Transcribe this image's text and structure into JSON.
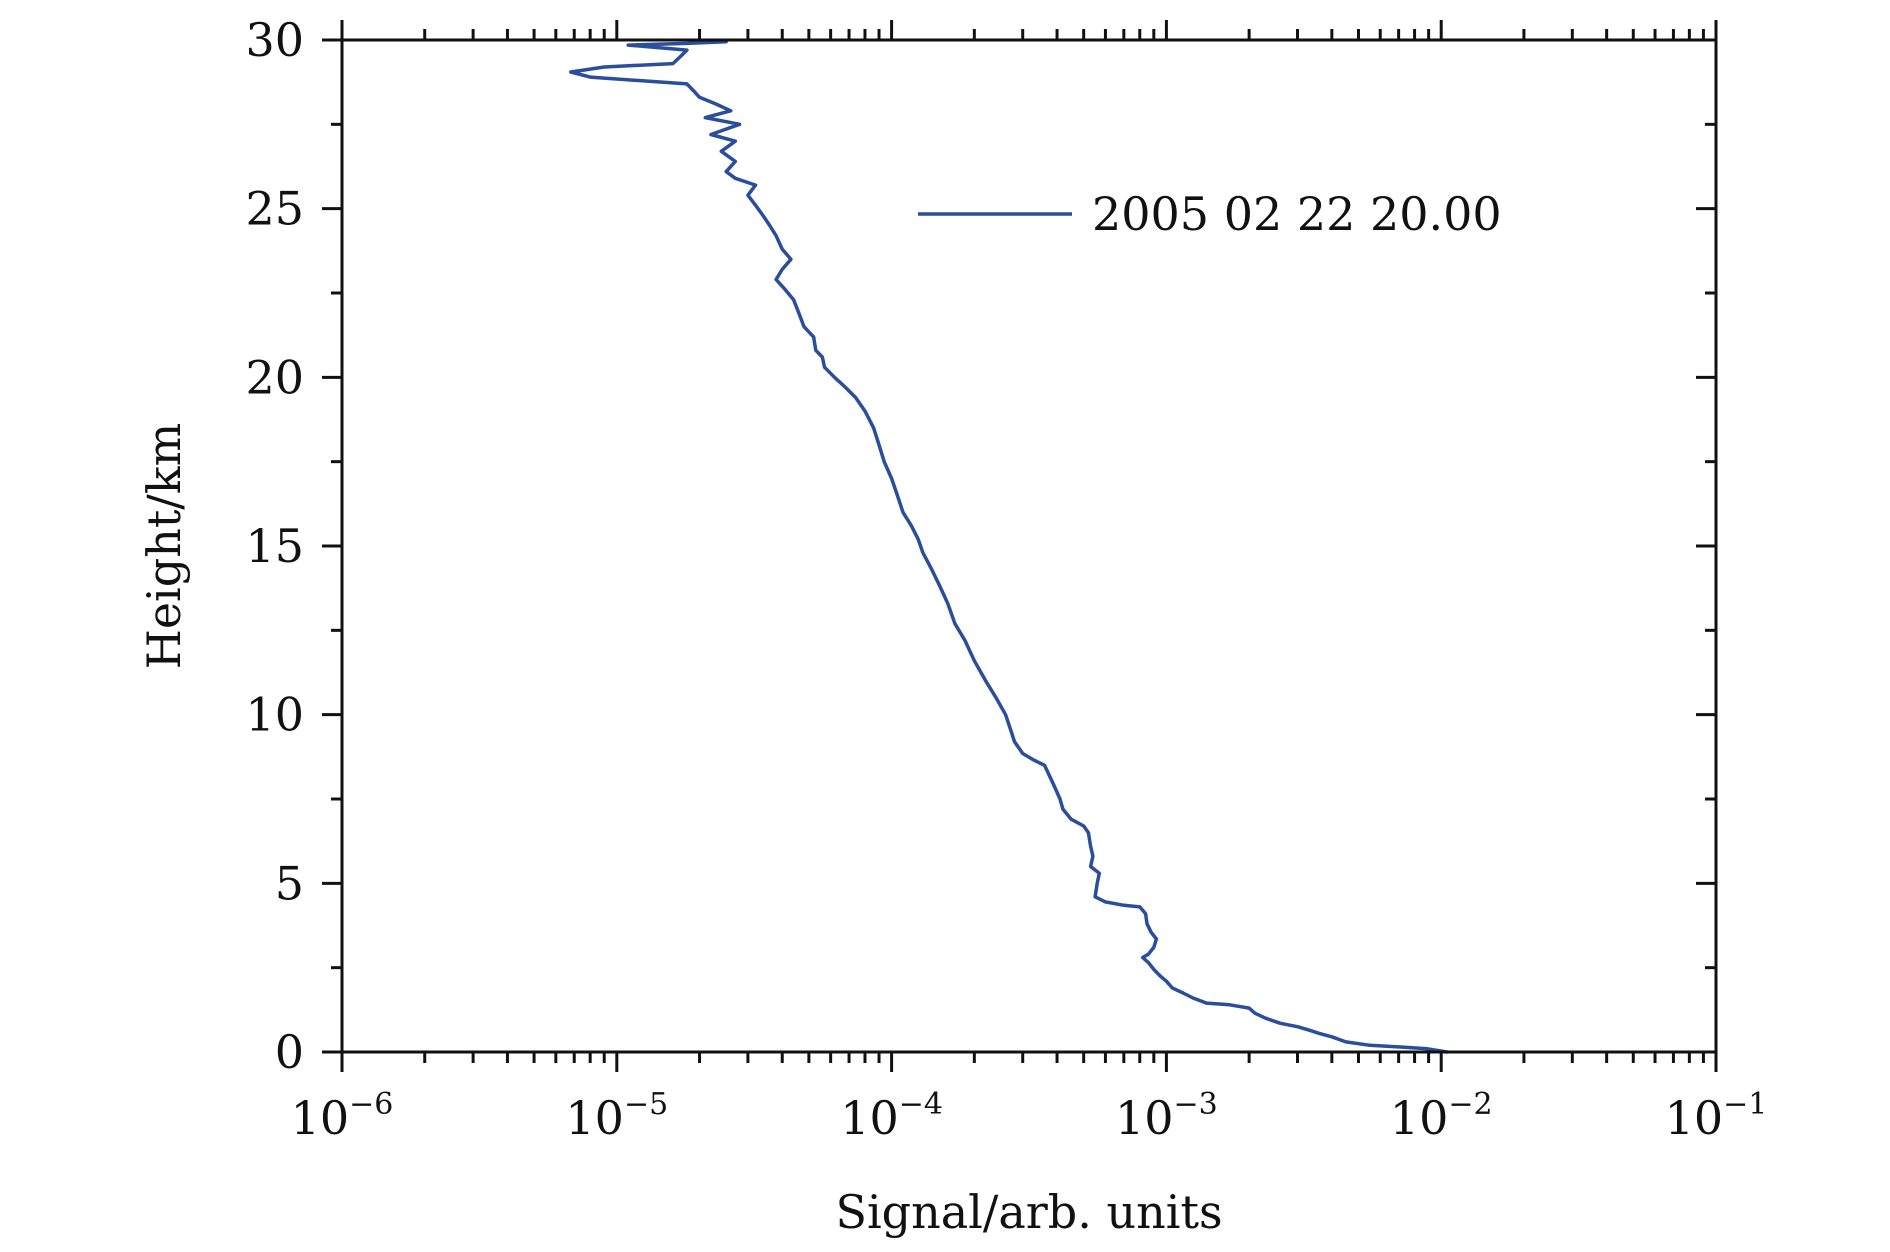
{
  "chart_data": {
    "type": "line",
    "title": "",
    "xlabel": "Signal/arb. units",
    "ylabel": "Height/km",
    "xscale": "log",
    "xlim": [
      1e-06,
      0.1
    ],
    "ylim": [
      0,
      30
    ],
    "grid": false,
    "legend_position": "top-right",
    "x_ticks": [
      {
        "base": "10",
        "exp": "−6",
        "value": 1e-06
      },
      {
        "base": "10",
        "exp": "−5",
        "value": 1e-05
      },
      {
        "base": "10",
        "exp": "−4",
        "value": 0.0001
      },
      {
        "base": "10",
        "exp": "−3",
        "value": 0.001
      },
      {
        "base": "10",
        "exp": "−2",
        "value": 0.01
      },
      {
        "base": "10",
        "exp": "−1",
        "value": 0.1
      }
    ],
    "y_ticks": [
      {
        "label": "0",
        "value": 0
      },
      {
        "label": "5",
        "value": 5
      },
      {
        "label": "10",
        "value": 10
      },
      {
        "label": "15",
        "value": 15
      },
      {
        "label": "20",
        "value": 20
      },
      {
        "label": "25",
        "value": 25
      },
      {
        "label": "30",
        "value": 30
      }
    ],
    "series": [
      {
        "name": "2005 02 22 20.00",
        "color": "#2a4d9c",
        "points": [
          [
            0.0105,
            0.0
          ],
          [
            0.0088,
            0.1
          ],
          [
            0.007,
            0.15
          ],
          [
            0.0055,
            0.2
          ],
          [
            0.0045,
            0.3
          ],
          [
            0.004,
            0.45
          ],
          [
            0.0036,
            0.55
          ],
          [
            0.0033,
            0.65
          ],
          [
            0.003,
            0.75
          ],
          [
            0.0026,
            0.85
          ],
          [
            0.0023,
            1.0
          ],
          [
            0.0021,
            1.15
          ],
          [
            0.002,
            1.3
          ],
          [
            0.0017,
            1.4
          ],
          [
            0.0014,
            1.45
          ],
          [
            0.00125,
            1.6
          ],
          [
            0.00115,
            1.75
          ],
          [
            0.00105,
            1.9
          ],
          [
            0.001,
            2.1
          ],
          [
            0.00095,
            2.25
          ],
          [
            0.0009,
            2.45
          ],
          [
            0.00086,
            2.65
          ],
          [
            0.00082,
            2.8
          ],
          [
            0.00086,
            2.9
          ],
          [
            0.0009,
            3.1
          ],
          [
            0.00092,
            3.35
          ],
          [
            0.00088,
            3.55
          ],
          [
            0.00085,
            3.8
          ],
          [
            0.00084,
            4.1
          ],
          [
            0.0008,
            4.3
          ],
          [
            0.0007,
            4.35
          ],
          [
            0.0006,
            4.45
          ],
          [
            0.00055,
            4.6
          ],
          [
            0.00056,
            5.0
          ],
          [
            0.00057,
            5.3
          ],
          [
            0.00053,
            5.5
          ],
          [
            0.00054,
            5.8
          ],
          [
            0.00053,
            6.1
          ],
          [
            0.00052,
            6.5
          ],
          [
            0.0005,
            6.7
          ],
          [
            0.00045,
            6.9
          ],
          [
            0.00042,
            7.2
          ],
          [
            0.00041,
            7.5
          ],
          [
            0.00039,
            7.9
          ],
          [
            0.00037,
            8.3
          ],
          [
            0.00036,
            8.5
          ],
          [
            0.00033,
            8.65
          ],
          [
            0.0003,
            8.85
          ],
          [
            0.00028,
            9.2
          ],
          [
            0.00027,
            9.6
          ],
          [
            0.00026,
            10.0
          ],
          [
            0.00024,
            10.5
          ],
          [
            0.00022,
            11.0
          ],
          [
            0.0002,
            11.6
          ],
          [
            0.000185,
            12.2
          ],
          [
            0.00017,
            12.7
          ],
          [
            0.00016,
            13.3
          ],
          [
            0.00015,
            13.8
          ],
          [
            0.00014,
            14.3
          ],
          [
            0.00013,
            14.8
          ],
          [
            0.000125,
            15.2
          ],
          [
            0.000118,
            15.6
          ],
          [
            0.00011,
            16.0
          ],
          [
            0.000105,
            16.5
          ],
          [
            0.0001,
            17.0
          ],
          [
            9.4e-05,
            17.5
          ],
          [
            9e-05,
            18.0
          ],
          [
            8.6e-05,
            18.5
          ],
          [
            8e-05,
            19.0
          ],
          [
            7.4e-05,
            19.4
          ],
          [
            6.8e-05,
            19.7
          ],
          [
            6.2e-05,
            20.0
          ],
          [
            5.7e-05,
            20.3
          ],
          [
            5.6e-05,
            20.6
          ],
          [
            5.3e-05,
            20.8
          ],
          [
            5.2e-05,
            21.2
          ],
          [
            4.8e-05,
            21.5
          ],
          [
            4.6e-05,
            21.9
          ],
          [
            4.4e-05,
            22.3
          ],
          [
            4.1e-05,
            22.6
          ],
          [
            3.8e-05,
            22.9
          ],
          [
            4e-05,
            23.2
          ],
          [
            4.3e-05,
            23.5
          ],
          [
            4e-05,
            23.8
          ],
          [
            3.8e-05,
            24.2
          ],
          [
            3.6e-05,
            24.5
          ],
          [
            3.4e-05,
            24.8
          ],
          [
            3.2e-05,
            25.1
          ],
          [
            3e-05,
            25.4
          ],
          [
            3.2e-05,
            25.7
          ],
          [
            2.7e-05,
            25.9
          ],
          [
            2.5e-05,
            26.1
          ],
          [
            2.7e-05,
            26.4
          ],
          [
            2.4e-05,
            26.7
          ],
          [
            2.7e-05,
            27.0
          ],
          [
            2.2e-05,
            27.2
          ],
          [
            2.8e-05,
            27.5
          ],
          [
            2.1e-05,
            27.7
          ],
          [
            2.6e-05,
            27.9
          ],
          [
            2.3e-05,
            28.1
          ],
          [
            2e-05,
            28.3
          ],
          [
            1.9e-05,
            28.5
          ],
          [
            1.8e-05,
            28.7
          ],
          [
            1.2e-05,
            28.8
          ],
          [
            8e-06,
            28.9
          ],
          [
            6.8e-06,
            29.05
          ],
          [
            9e-06,
            29.2
          ],
          [
            1.6e-05,
            29.3
          ],
          [
            1.7e-05,
            29.5
          ],
          [
            1.8e-05,
            29.7
          ],
          [
            1.3e-05,
            29.8
          ],
          [
            1.1e-05,
            29.85
          ],
          [
            1.8e-05,
            29.9
          ],
          [
            2.5e-05,
            29.95
          ]
        ]
      }
    ]
  }
}
